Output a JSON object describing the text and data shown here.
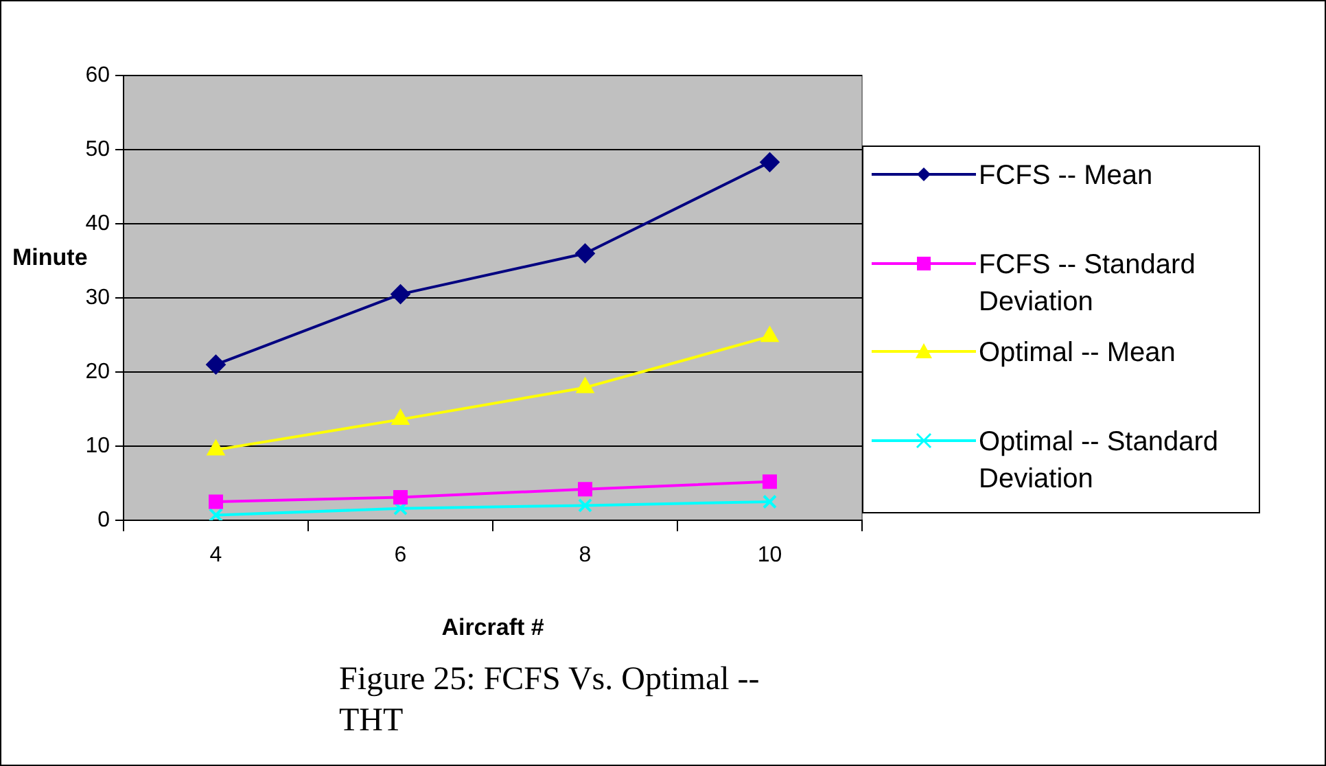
{
  "chart_data": {
    "type": "line",
    "xlabel": "Aircraft #",
    "ylabel": "Minute",
    "categories": [
      "4",
      "6",
      "8",
      "10"
    ],
    "series": [
      {
        "name": "FCFS -- Mean",
        "color": "#000080",
        "marker": "diamond",
        "values": [
          21.0,
          30.5,
          36.0,
          48.3
        ]
      },
      {
        "name": "FCFS -- Standard Deviation",
        "color": "#ff00ff",
        "marker": "square",
        "values": [
          2.5,
          3.1,
          4.2,
          5.2
        ]
      },
      {
        "name": "Optimal -- Mean",
        "color": "#ffff00",
        "marker": "triangle",
        "values": [
          9.5,
          13.6,
          17.9,
          24.8
        ]
      },
      {
        "name": "Optimal -- Standard Deviation",
        "color": "#00ffff",
        "marker": "cross",
        "values": [
          0.7,
          1.6,
          2.0,
          2.5
        ]
      }
    ],
    "ylim": [
      0,
      60
    ],
    "yticks": [
      0,
      10,
      20,
      30,
      40,
      50,
      60
    ],
    "grid": "y",
    "legend": "right",
    "line_style": "solid",
    "annotations": [
      "Figure 25: FCFS Vs. Optimal -- THT"
    ]
  }
}
